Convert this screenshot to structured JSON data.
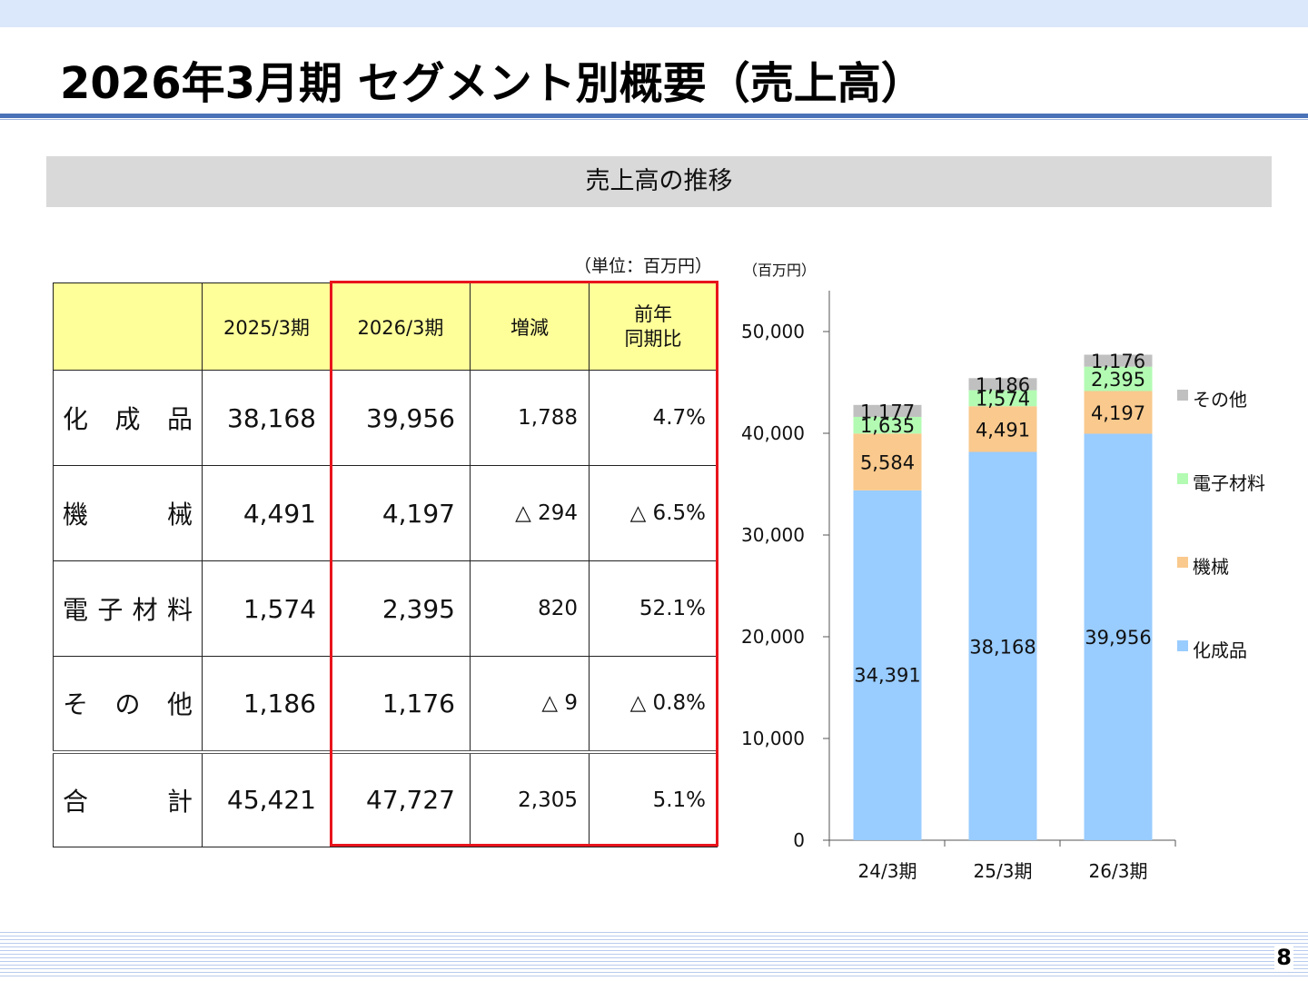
{
  "slide": {
    "title": "2026年3月期 セグメント別概要（売上高）",
    "section_heading": "売上高の推移",
    "unit_note": "（単位：百万円）",
    "page_number": "8"
  },
  "table": {
    "headers": [
      "",
      "2025/3期",
      "2026/3期",
      "増減",
      "前年\n同期比"
    ],
    "rows": [
      {
        "label": [
          "化",
          "成",
          "品"
        ],
        "prev": "38,168",
        "curr": "39,956",
        "diff": "1,788",
        "ratio": "4.7%"
      },
      {
        "label": [
          "機",
          "械"
        ],
        "prev": "4,491",
        "curr": "4,197",
        "diff": "△ 294",
        "ratio": "△ 6.5%"
      },
      {
        "label": [
          "電",
          "子",
          "材",
          "料"
        ],
        "prev": "1,574",
        "curr": "2,395",
        "diff": "820",
        "ratio": "52.1%"
      },
      {
        "label": [
          "そ",
          "の",
          "他"
        ],
        "prev": "1,186",
        "curr": "1,176",
        "diff": "△ 9",
        "ratio": "△ 0.8%"
      },
      {
        "label": [
          "合",
          "計"
        ],
        "prev": "45,421",
        "curr": "47,727",
        "diff": "2,305",
        "ratio": "5.1%"
      }
    ]
  },
  "chart_data": {
    "type": "bar",
    "stacked": true,
    "unit_label": "（百万円）",
    "categories": [
      "24/3期",
      "25/3期",
      "26/3期"
    ],
    "series": [
      {
        "name": "化成品",
        "values": [
          34391,
          38168,
          39956
        ],
        "labels": [
          "34,391",
          "38,168",
          "39,956"
        ],
        "color": "#99ccff"
      },
      {
        "name": "機械",
        "values": [
          5584,
          4491,
          4197
        ],
        "labels": [
          "5,584",
          "4,491",
          "4,197"
        ],
        "color": "#f9c98d"
      },
      {
        "name": "電子材料",
        "values": [
          1635,
          1574,
          2395
        ],
        "labels": [
          "1,635",
          "1,574",
          "2,395"
        ],
        "color": "#b3fbb3"
      },
      {
        "name": "その他",
        "values": [
          1177,
          1186,
          1176
        ],
        "labels": [
          "1,177",
          "1,186",
          "1,176"
        ],
        "color": "#c0c0c0"
      }
    ],
    "ylim": [
      0,
      54000
    ],
    "yticks": [
      0,
      10000,
      20000,
      30000,
      40000,
      50000
    ],
    "ytick_labels": [
      "0",
      "10,000",
      "20,000",
      "30,000",
      "40,000",
      "50,000"
    ],
    "legend": [
      "その他",
      "電子材料",
      "機械",
      "化成品"
    ],
    "legend_position": "right",
    "grid": false
  }
}
